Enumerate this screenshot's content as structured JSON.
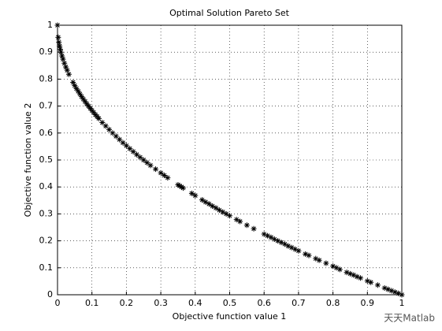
{
  "chart_data": {
    "type": "scatter",
    "title": "Optimal Solution Pareto Set",
    "x_label": "Objective function value 1",
    "y_label": "Objective function value 2",
    "marker": "asterisk",
    "color": "#000000",
    "grid": true,
    "xlim": [
      0,
      1
    ],
    "ylim": [
      0,
      1
    ],
    "xticks": [
      0,
      0.1,
      0.2,
      0.3,
      0.4,
      0.5,
      0.6,
      0.7,
      0.8,
      0.9,
      1
    ],
    "yticks": [
      0,
      0.1,
      0.2,
      0.3,
      0.4,
      0.5,
      0.6,
      0.7,
      0.8,
      0.9,
      1
    ],
    "x": [
      0,
      0.002,
      0.004,
      0.006,
      0.008,
      0.01,
      0.013,
      0.016,
      0.02,
      0.024,
      0.028,
      0.033,
      0.045,
      0.05,
      0.055,
      0.06,
      0.065,
      0.07,
      0.075,
      0.08,
      0.085,
      0.09,
      0.095,
      0.1,
      0.105,
      0.11,
      0.115,
      0.12,
      0.13,
      0.14,
      0.15,
      0.16,
      0.17,
      0.18,
      0.19,
      0.2,
      0.21,
      0.22,
      0.23,
      0.24,
      0.25,
      0.26,
      0.27,
      0.285,
      0.3,
      0.31,
      0.32,
      0.35,
      0.355,
      0.36,
      0.365,
      0.39,
      0.4,
      0.42,
      0.43,
      0.44,
      0.45,
      0.46,
      0.47,
      0.48,
      0.49,
      0.5,
      0.52,
      0.53,
      0.55,
      0.57,
      0.6,
      0.61,
      0.62,
      0.63,
      0.64,
      0.65,
      0.66,
      0.67,
      0.68,
      0.69,
      0.7,
      0.72,
      0.73,
      0.75,
      0.76,
      0.78,
      0.8,
      0.81,
      0.82,
      0.84,
      0.85,
      0.86,
      0.87,
      0.88,
      0.9,
      0.91,
      0.93,
      0.95,
      0.96,
      0.97,
      0.98,
      0.99,
      1
    ],
    "values": [
      1,
      0.955,
      0.937,
      0.923,
      0.911,
      0.9,
      0.886,
      0.874,
      0.859,
      0.845,
      0.833,
      0.818,
      0.788,
      0.776,
      0.765,
      0.755,
      0.745,
      0.735,
      0.726,
      0.717,
      0.708,
      0.7,
      0.692,
      0.684,
      0.676,
      0.668,
      0.661,
      0.654,
      0.639,
      0.626,
      0.613,
      0.6,
      0.588,
      0.576,
      0.564,
      0.553,
      0.542,
      0.531,
      0.52,
      0.51,
      0.5,
      0.49,
      0.48,
      0.466,
      0.452,
      0.443,
      0.434,
      0.408,
      0.404,
      0.4,
      0.396,
      0.376,
      0.368,
      0.352,
      0.344,
      0.337,
      0.329,
      0.322,
      0.314,
      0.307,
      0.3,
      0.293,
      0.279,
      0.272,
      0.258,
      0.245,
      0.225,
      0.219,
      0.213,
      0.206,
      0.2,
      0.194,
      0.188,
      0.181,
      0.175,
      0.169,
      0.163,
      0.151,
      0.146,
      0.134,
      0.128,
      0.117,
      0.106,
      0.1,
      0.094,
      0.083,
      0.078,
      0.073,
      0.067,
      0.062,
      0.051,
      0.046,
      0.036,
      0.025,
      0.02,
      0.015,
      0.01,
      0.005,
      0
    ]
  },
  "watermark": "天天Matlab"
}
